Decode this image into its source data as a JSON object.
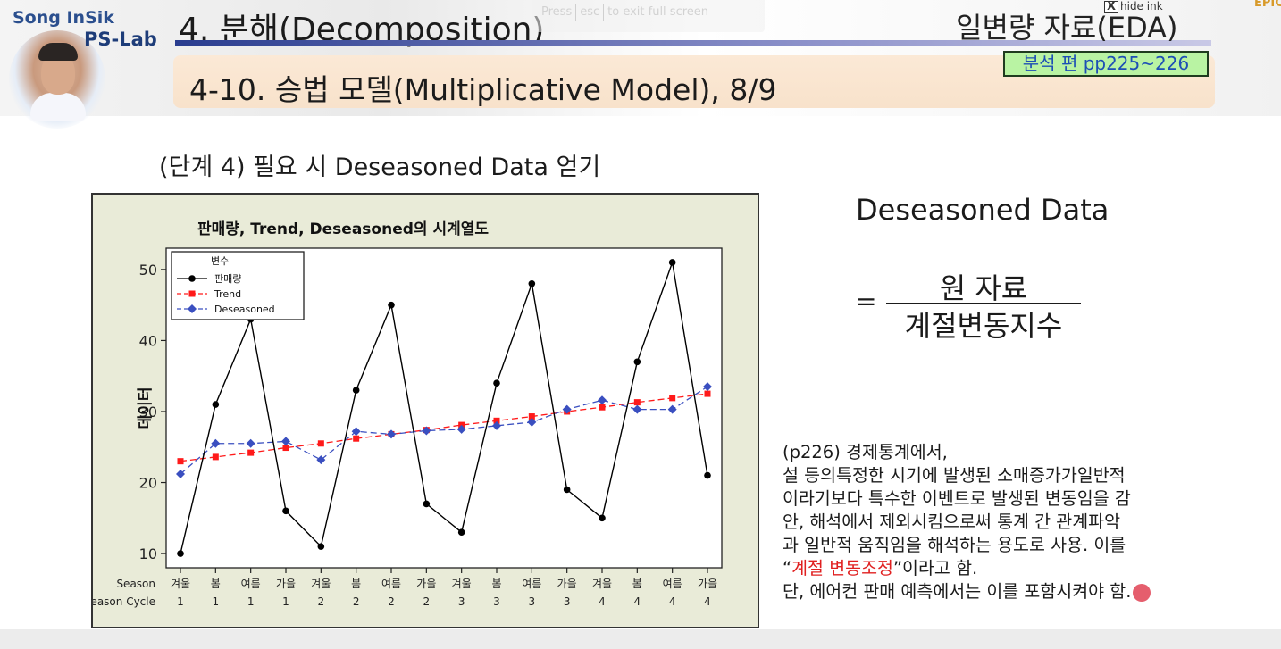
{
  "header": {
    "logo_name": "Song InSik",
    "logo_lab": "PS-Lab",
    "chapter_title": "4. 분해(Decomposition)",
    "chapter_right": "일변량 자료(EDA)",
    "overlay_press": "Press",
    "overlay_key": "esc",
    "overlay_exit": "to exit full screen",
    "hide_ink_label": "hide ink",
    "hide_ink_x": "X",
    "corner_label": "EPIC"
  },
  "section": {
    "title": "4-10. 승법 모델(Multiplicative Model), 8/9",
    "page_ref": "분석 편 pp225~226"
  },
  "step_heading": "(단계 4) 필요 시 Deseasoned Data 얻기",
  "formula": {
    "title": "Deseasoned Data",
    "equals": "=",
    "numerator": "원 자료",
    "denominator": "계절변동지수"
  },
  "note": {
    "line1": "(p226) 경제통계에서,",
    "line2": "설 등의특정한 시기에 발생된 소매증가가일반적",
    "line3": "이라기보다 특수한 이벤트로 발생된 변동임을 감",
    "line4": "안, 해석에서 제외시킴으로써 통계 간 관계파악",
    "line5": "과 일반적 움직임을 해석하는 용도로 사용. 이를",
    "line6_open": "“",
    "line6_highlight": "계절 변동조정",
    "line6_close": "”이라고 함.",
    "line7": "단, 에어컨 판매 예측에서는 이를 포함시켜야 함."
  },
  "colors": {
    "plot_bg": "#ffffff",
    "frame_bg": "#e9ebd8",
    "sales": "#000000",
    "trend": "#ff1a1a",
    "deseasoned": "#3a4fc0",
    "highlight": "#e02020"
  },
  "chart_data": {
    "type": "line",
    "title": "판매량, Trend, Deseasoned의 시계열도",
    "ylabel": "데이터",
    "ylim": [
      8,
      53
    ],
    "yticks": [
      10,
      20,
      30,
      40,
      50
    ],
    "row_labels": [
      "Season",
      "Season Cycle"
    ],
    "categories": [
      "겨울",
      "봄",
      "여름",
      "가을",
      "겨울",
      "봄",
      "여름",
      "가을",
      "겨울",
      "봄",
      "여름",
      "가을",
      "겨울",
      "봄",
      "여름",
      "가을"
    ],
    "cycles": [
      "1",
      "1",
      "1",
      "1",
      "2",
      "2",
      "2",
      "2",
      "3",
      "3",
      "3",
      "3",
      "4",
      "4",
      "4",
      "4"
    ],
    "legend_title": "변수",
    "legend_position": "top-left",
    "grid": false,
    "series": [
      {
        "name": "판매량",
        "color": "#000000",
        "marker": "circle",
        "dash": "solid",
        "values": [
          10,
          31,
          43,
          16,
          11,
          33,
          45,
          17,
          13,
          34,
          48,
          19,
          15,
          37,
          51,
          21
        ]
      },
      {
        "name": "Trend",
        "color": "#ff1a1a",
        "marker": "square",
        "dash": "dashed",
        "values": [
          23.0,
          23.6,
          24.2,
          24.9,
          25.5,
          26.2,
          26.8,
          27.4,
          28.1,
          28.7,
          29.3,
          30.0,
          30.6,
          31.3,
          31.9,
          32.5
        ]
      },
      {
        "name": "Deseasoned",
        "color": "#3a4fc0",
        "marker": "diamond",
        "dash": "dashed",
        "values": [
          21.2,
          25.5,
          25.5,
          25.8,
          23.2,
          27.2,
          26.8,
          27.3,
          27.5,
          28.0,
          28.5,
          30.3,
          31.6,
          30.3,
          30.3,
          33.5
        ]
      }
    ]
  }
}
